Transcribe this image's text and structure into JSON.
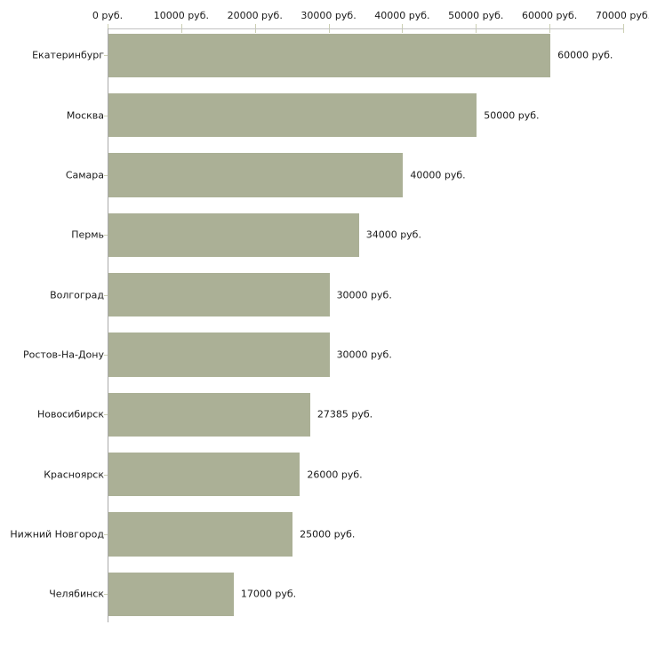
{
  "chart_data": {
    "type": "bar",
    "orientation": "horizontal",
    "title": "",
    "xlabel": "",
    "ylabel": "",
    "grid": false,
    "legend": false,
    "categories": [
      "Екатеринбург",
      "Москва",
      "Самара",
      "Пермь",
      "Волгоград",
      "Ростов-На-Дону",
      "Новосибирск",
      "Красноярск",
      "Нижний Новгород",
      "Челябинск"
    ],
    "values": [
      60000,
      50000,
      40000,
      34000,
      30000,
      30000,
      27385,
      26000,
      25000,
      17000
    ],
    "bar_labels": [
      "60000 руб.",
      "50000 руб.",
      "40000 руб.",
      "34000 руб.",
      "30000 руб.",
      "30000 руб.",
      "27385 руб.",
      "26000 руб.",
      "25000 руб.",
      "17000 руб."
    ],
    "x_axis": {
      "position": "top",
      "range": [
        0,
        70000
      ],
      "ticks": [
        0,
        10000,
        20000,
        30000,
        40000,
        50000,
        60000,
        70000
      ],
      "tick_labels": [
        "0 руб.",
        "10000 руб.",
        "20000 руб.",
        "30000 руб.",
        "40000 руб.",
        "50000 руб.",
        "60000 руб.",
        "70000 руб."
      ]
    },
    "unit": "руб."
  },
  "colors": {
    "background": "#ffffff",
    "bar_fill": "#abb096",
    "axis_line_horizontal": "#c2c2c2",
    "axis_line_vertical": "#a9a9a9",
    "tick_mark": "#cbcfb3",
    "text": "#1a1a1a"
  }
}
